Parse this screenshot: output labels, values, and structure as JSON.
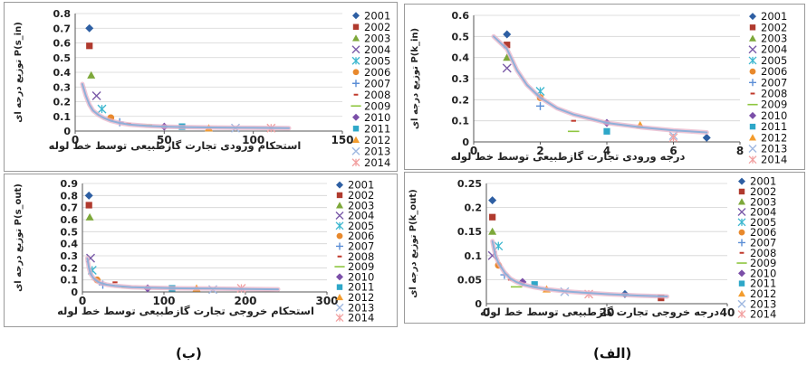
{
  "captions": {
    "left": "(ب)",
    "right": "(الف)"
  },
  "chart_data": [
    {
      "id": "top-left",
      "type": "scatter",
      "title": "",
      "xlabel": "استحکام ورودی تجارت گازطبیعی توسط خط لوله",
      "ylabel": "توزیع درجه ای P(s_in)",
      "xlim": [
        0,
        150
      ],
      "ylim": [
        0,
        0.8
      ],
      "xticks": [
        0,
        50,
        100,
        150
      ],
      "yticks": [
        0,
        0.1,
        0.2,
        0.3,
        0.4,
        0.5,
        0.6,
        0.7,
        0.8
      ],
      "fit_curve": {
        "x": [
          4,
          6,
          8,
          10,
          13,
          16,
          20,
          25,
          30,
          40,
          50,
          60,
          80,
          100,
          120
        ],
        "y": [
          0.32,
          0.24,
          0.18,
          0.14,
          0.11,
          0.09,
          0.07,
          0.055,
          0.045,
          0.035,
          0.03,
          0.027,
          0.024,
          0.022,
          0.02
        ]
      },
      "points": {
        "x": [
          8,
          8,
          9,
          12,
          15,
          20,
          25,
          30,
          40,
          50,
          60,
          75,
          90,
          110
        ],
        "y": [
          0.7,
          0.58,
          0.38,
          0.24,
          0.15,
          0.09,
          0.06,
          0.05,
          0.04,
          0.03,
          0.03,
          0.02,
          0.02,
          0.02
        ]
      }
    },
    {
      "id": "top-right",
      "type": "scatter",
      "title": "",
      "xlabel": "درجه ورودی تجارت گازطبیعی توسط خط لوله",
      "ylabel": "توزیع درجه ای P(k_in)",
      "xlim": [
        0,
        8
      ],
      "ylim": [
        0,
        0.6
      ],
      "xticks": [
        0,
        2,
        4,
        6,
        8
      ],
      "yticks": [
        0,
        0.1,
        0.2,
        0.3,
        0.4,
        0.5,
        0.6
      ],
      "fit_curve": {
        "x": [
          0.6,
          0.8,
          1,
          1.3,
          1.6,
          2,
          2.5,
          3,
          3.5,
          4,
          5,
          6,
          7
        ],
        "y": [
          0.5,
          0.47,
          0.44,
          0.34,
          0.27,
          0.21,
          0.16,
          0.13,
          0.11,
          0.09,
          0.07,
          0.055,
          0.045
        ]
      },
      "points": {
        "x": [
          1,
          1,
          1,
          1,
          2,
          2,
          2,
          3,
          3,
          4,
          4,
          5,
          6,
          6,
          7
        ],
        "y": [
          0.51,
          0.46,
          0.4,
          0.35,
          0.24,
          0.21,
          0.17,
          0.1,
          0.05,
          0.09,
          0.05,
          0.08,
          0.03,
          0.02,
          0.02
        ]
      }
    },
    {
      "id": "bottom-left",
      "type": "scatter",
      "title": "",
      "xlabel": "استحکام خروجی تجارت گازطبیعی توسط خط لوله",
      "ylabel": "توزیع درجه ای P(s_out)",
      "xlim": [
        0,
        300
      ],
      "ylim": [
        0,
        0.9
      ],
      "xticks": [
        0,
        100,
        200,
        300
      ],
      "yticks": [
        0,
        0.1,
        0.2,
        0.3,
        0.4,
        0.5,
        0.6,
        0.7,
        0.8,
        0.9
      ],
      "fit_curve": {
        "x": [
          6,
          8,
          10,
          14,
          20,
          30,
          40,
          60,
          80,
          120,
          160,
          200,
          240
        ],
        "y": [
          0.28,
          0.2,
          0.15,
          0.11,
          0.08,
          0.06,
          0.05,
          0.04,
          0.035,
          0.03,
          0.028,
          0.025,
          0.022
        ]
      },
      "points": {
        "x": [
          8,
          8,
          9,
          10,
          12,
          18,
          25,
          40,
          55,
          80,
          110,
          140,
          160,
          195
        ],
        "y": [
          0.8,
          0.72,
          0.62,
          0.28,
          0.18,
          0.1,
          0.06,
          0.08,
          0.04,
          0.03,
          0.03,
          0.03,
          0.02,
          0.03
        ]
      }
    },
    {
      "id": "bottom-right",
      "type": "scatter",
      "title": "",
      "xlabel": "درجه خروجی تجارت گازطبیعی توسط خط لوله",
      "ylabel": "توزیع درجه ای P(k_out)",
      "xlim": [
        0,
        40
      ],
      "ylim": [
        0,
        0.25
      ],
      "xticks": [
        0,
        20,
        40
      ],
      "yticks": [
        0,
        0.05,
        0.1,
        0.15,
        0.2,
        0.25
      ],
      "fit_curve": {
        "x": [
          1,
          1.5,
          2,
          3,
          4,
          5,
          6,
          8,
          10,
          13,
          16,
          20,
          25,
          30
        ],
        "y": [
          0.13,
          0.1,
          0.085,
          0.065,
          0.052,
          0.045,
          0.04,
          0.034,
          0.03,
          0.026,
          0.023,
          0.02,
          0.017,
          0.015
        ]
      },
      "points": {
        "x": [
          1,
          1,
          1,
          1,
          2,
          2,
          3,
          4,
          5,
          6,
          8,
          10,
          13,
          17,
          23,
          29
        ],
        "y": [
          0.215,
          0.18,
          0.15,
          0.1,
          0.12,
          0.08,
          0.06,
          0.05,
          0.035,
          0.045,
          0.04,
          0.03,
          0.025,
          0.02,
          0.02,
          0.012
        ]
      }
    }
  ],
  "legend": {
    "items": [
      {
        "label": "2001",
        "color": "#2e5fa3",
        "marker": "diamond"
      },
      {
        "label": "2002",
        "color": "#b03a2e",
        "marker": "square"
      },
      {
        "label": "2003",
        "color": "#7da83a",
        "marker": "triangle"
      },
      {
        "label": "2004",
        "color": "#7a5aa8",
        "marker": "x"
      },
      {
        "label": "2005",
        "color": "#3cb7cf",
        "marker": "star"
      },
      {
        "label": "2006",
        "color": "#e8892d",
        "marker": "circle"
      },
      {
        "label": "2007",
        "color": "#5b8ed6",
        "marker": "plus"
      },
      {
        "label": "2008",
        "color": "#c0392b",
        "marker": "dash"
      },
      {
        "label": "2009",
        "color": "#8ec63f",
        "marker": "line"
      },
      {
        "label": "2010",
        "color": "#7b4fa8",
        "marker": "diamond"
      },
      {
        "label": "2011",
        "color": "#2ea7c8",
        "marker": "square"
      },
      {
        "label": "2012",
        "color": "#f39c2d",
        "marker": "triangle"
      },
      {
        "label": "2013",
        "color": "#9fb8e0",
        "marker": "x"
      },
      {
        "label": "2014",
        "color": "#f2a1a1",
        "marker": "star"
      }
    ]
  }
}
